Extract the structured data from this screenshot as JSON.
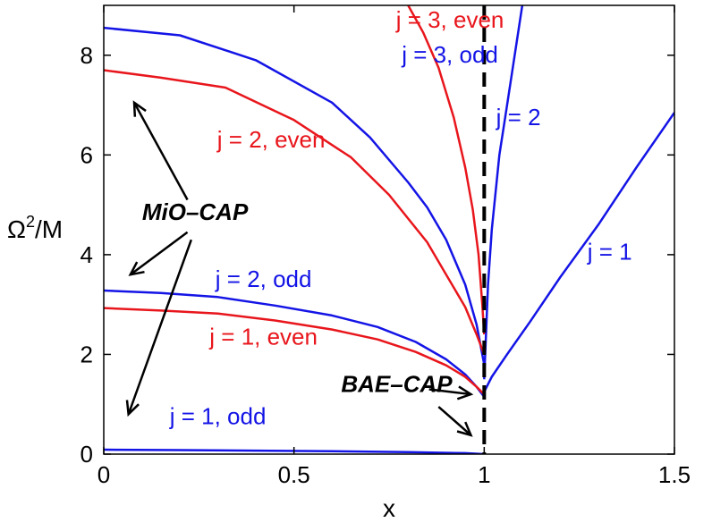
{
  "chart_data": {
    "type": "line",
    "xlabel": "x",
    "ylabel_main": "Ω",
    "ylabel_sup": "2",
    "ylabel_tail": "/M",
    "xlim": [
      0,
      1.5
    ],
    "ylim": [
      0,
      9
    ],
    "xticks": [
      0,
      0.5,
      1,
      1.5
    ],
    "xtick_labels": [
      "0",
      "0.5",
      "1",
      "1.5"
    ],
    "yticks": [
      0,
      2,
      4,
      6,
      8
    ],
    "ytick_labels": [
      "0",
      "2",
      "4",
      "6",
      "8"
    ],
    "grid": false,
    "colors": {
      "red": "#e8161c",
      "blue": "#1414e6",
      "black": "#000000"
    },
    "series": [
      {
        "name": "j = 3, even",
        "color": "red",
        "x": [
          0.8,
          0.84,
          0.88,
          0.92,
          0.95,
          0.97,
          0.985,
          0.995,
          1.0
        ],
        "y": [
          9.0,
          8.45,
          7.75,
          6.75,
          5.75,
          4.9,
          4.0,
          3.0,
          2.4
        ],
        "label_x": 0.91,
        "label_y": 8.55
      },
      {
        "name": "j = 3, odd",
        "color": "blue",
        "x": [
          0.0,
          0.2,
          0.4,
          0.6,
          0.7,
          0.8,
          0.85,
          0.9,
          0.95,
          0.98,
          1.0
        ],
        "y": [
          8.55,
          8.4,
          7.9,
          7.05,
          6.35,
          5.45,
          4.95,
          4.3,
          3.4,
          2.6,
          1.8
        ],
        "label_x": 0.91,
        "label_y": 7.85
      },
      {
        "name": "j = 2, even",
        "color": "red",
        "x": [
          0.0,
          0.15,
          0.32,
          0.5,
          0.65,
          0.75,
          0.85,
          0.9,
          0.95,
          0.98,
          1.0
        ],
        "y": [
          7.7,
          7.55,
          7.35,
          6.7,
          5.95,
          5.2,
          4.25,
          3.6,
          2.95,
          2.4,
          2.0
        ],
        "label_x": 0.44,
        "label_y": 6.15
      },
      {
        "name": "j = 2, odd",
        "color": "blue",
        "x": [
          0.0,
          0.15,
          0.3,
          0.45,
          0.6,
          0.72,
          0.82,
          0.9,
          0.95,
          0.98,
          1.0
        ],
        "y": [
          3.28,
          3.23,
          3.15,
          2.98,
          2.78,
          2.55,
          2.25,
          1.9,
          1.6,
          1.35,
          1.15
        ],
        "label_x": 0.42,
        "label_y": 3.35
      },
      {
        "name": "j = 1, even",
        "color": "red",
        "x": [
          0.0,
          0.15,
          0.3,
          0.45,
          0.6,
          0.72,
          0.82,
          0.9,
          0.95,
          0.98,
          1.0
        ],
        "y": [
          2.93,
          2.88,
          2.82,
          2.68,
          2.5,
          2.3,
          2.05,
          1.78,
          1.55,
          1.35,
          1.2
        ],
        "label_x": 0.42,
        "label_y": 2.2
      },
      {
        "name": "j = 1, odd",
        "color": "blue",
        "x": [
          0.0,
          0.2,
          0.4,
          0.6,
          0.8,
          0.95,
          1.0
        ],
        "y": [
          0.09,
          0.08,
          0.07,
          0.06,
          0.04,
          0.02,
          0.0
        ],
        "label_x": 0.3,
        "label_y": 0.6
      },
      {
        "name": "j = 2",
        "color": "blue",
        "x": [
          1.0,
          1.01,
          1.02,
          1.04,
          1.06,
          1.08,
          1.1
        ],
        "y": [
          1.5,
          3.4,
          4.5,
          6.0,
          7.0,
          8.0,
          9.0
        ],
        "label_x": 1.09,
        "label_y": 6.6
      },
      {
        "name": "j = 1",
        "color": "blue",
        "x": [
          1.0,
          1.02,
          1.06,
          1.12,
          1.2,
          1.3,
          1.4,
          1.5
        ],
        "y": [
          1.25,
          1.55,
          2.0,
          2.65,
          3.55,
          4.6,
          5.75,
          6.85
        ],
        "label_x": 1.33,
        "label_y": 3.9
      }
    ],
    "vline": {
      "x": 1.0,
      "style": "dashed",
      "color": "black"
    },
    "annotations": [
      {
        "text": "MiO–CAP",
        "x": 0.24,
        "y": 4.7,
        "arrows": [
          {
            "from": [
              0.22,
              5.1
            ],
            "to": [
              0.08,
              7.05
            ]
          },
          {
            "from": [
              0.22,
              4.45
            ],
            "to": [
              0.07,
              3.6
            ]
          },
          {
            "from": [
              0.23,
              4.3
            ],
            "to": [
              0.065,
              0.8
            ]
          }
        ]
      },
      {
        "text": "BAE–CAP",
        "x": 0.77,
        "y": 1.25,
        "arrows": [
          {
            "from": [
              0.855,
              1.3
            ],
            "to": [
              0.965,
              1.2
            ]
          },
          {
            "from": [
              0.88,
              0.95
            ],
            "to": [
              0.965,
              0.38
            ]
          }
        ]
      }
    ]
  }
}
